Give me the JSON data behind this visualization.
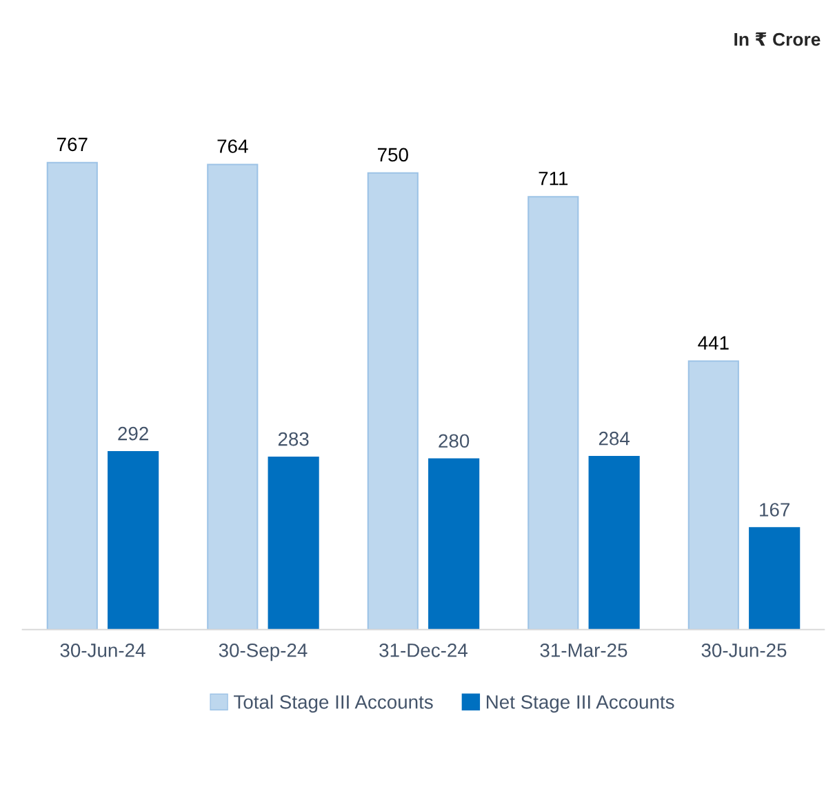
{
  "chart_data": {
    "type": "bar",
    "categories": [
      "30-Jun-24",
      "30-Sep-24",
      "31-Dec-24",
      "31-Mar-25",
      "30-Jun-25"
    ],
    "series": [
      {
        "name": "Total Stage III Accounts",
        "color": "#bdd7ee",
        "values": [
          767,
          764,
          750,
          711,
          441
        ]
      },
      {
        "name": "Net Stage III Accounts",
        "color": "#0070c0",
        "values": [
          292,
          283,
          280,
          284,
          167
        ]
      }
    ],
    "data_labels": true,
    "legend": "bottom",
    "grid": false,
    "annotations": [
      "In ₹ Crore"
    ]
  }
}
